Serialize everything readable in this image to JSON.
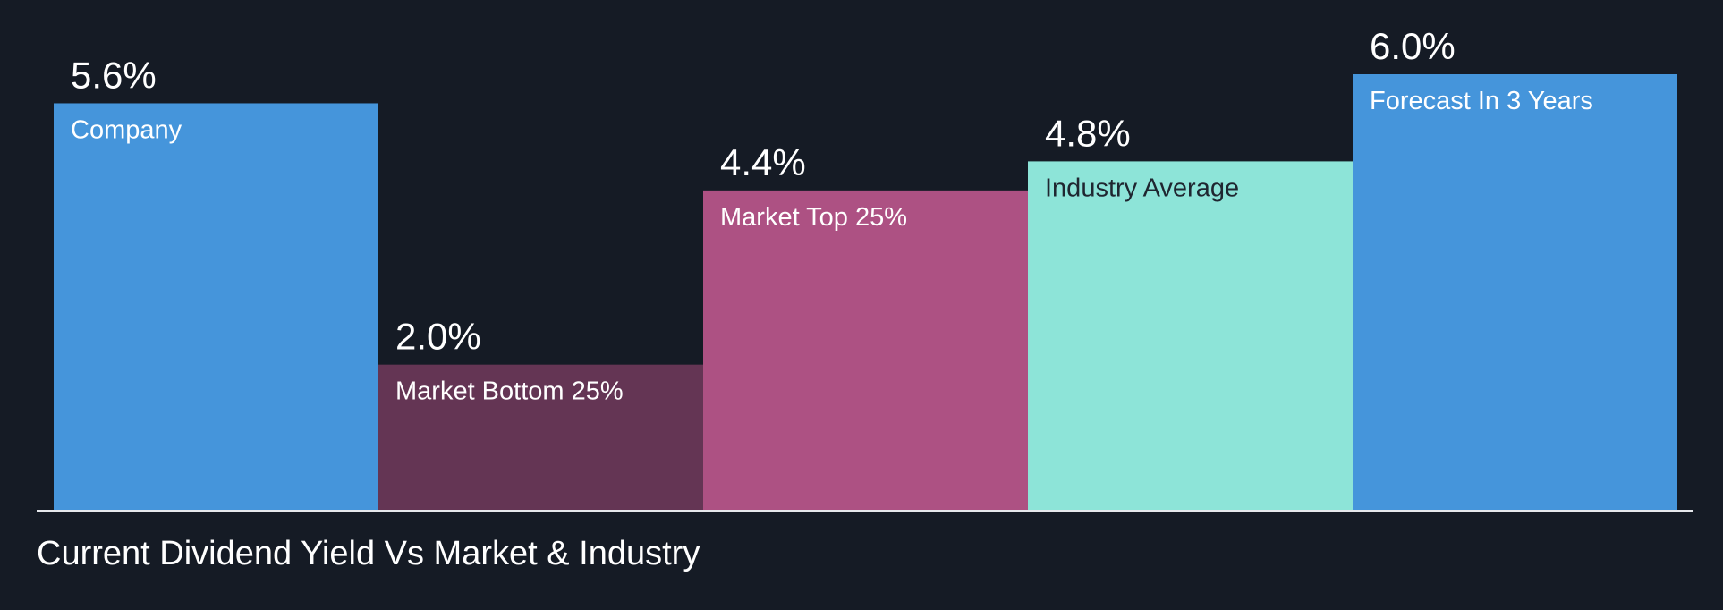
{
  "chart_data": {
    "type": "bar",
    "title": "Current Dividend Yield Vs Market & Industry",
    "categories": [
      "Company",
      "Market Bottom 25%",
      "Market Top 25%",
      "Industry Average",
      "Forecast In 3 Years"
    ],
    "values": [
      5.6,
      2.0,
      4.4,
      4.8,
      6.0
    ],
    "value_labels": [
      "5.6%",
      "2.0%",
      "4.4%",
      "4.8%",
      "6.0%"
    ],
    "colors": [
      "#4595db",
      "#643554",
      "#ad5183",
      "#8de4d8",
      "#4595db"
    ],
    "label_colors": [
      "#ffffff",
      "#ffffff",
      "#ffffff",
      "#1f2630",
      "#ffffff"
    ],
    "unit": "%",
    "ylim": [
      0,
      6.0
    ],
    "grid": false,
    "legend": "none"
  }
}
